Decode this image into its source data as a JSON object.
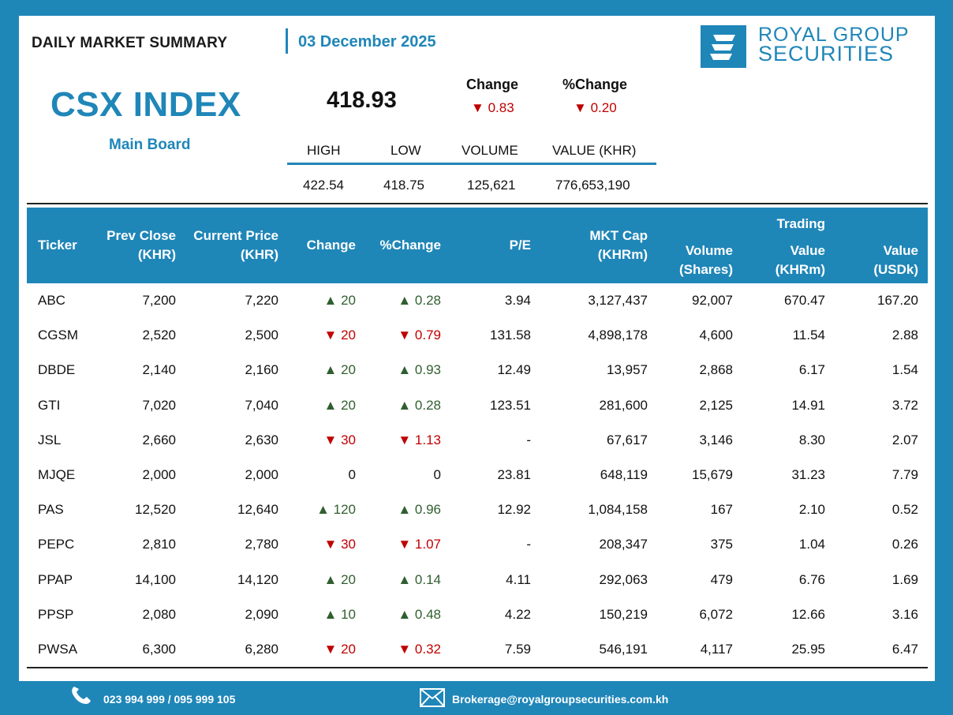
{
  "header": {
    "report_title": "DAILY MARKET SUMMARY",
    "date": "03 December 2025",
    "brand_line1": "ROYAL GROUP",
    "brand_line2": "SECURITIES"
  },
  "index": {
    "name": "CSX INDEX",
    "board": "Main Board",
    "value": "418.93",
    "change_label": "Change",
    "change_value": "0.83",
    "pct_change_label": "%Change",
    "pct_change_value": "0.20",
    "change_direction": "down"
  },
  "stats": {
    "labels": [
      "HIGH",
      "LOW",
      "VOLUME",
      "VALUE (KHR)"
    ],
    "values": [
      "422.54",
      "418.75",
      "125,621",
      "776,653,190"
    ]
  },
  "table": {
    "headers": {
      "ticker": "Ticker",
      "prev_close": [
        "Prev Close",
        "(KHR)"
      ],
      "current_price": [
        "Current Price",
        "(KHR)"
      ],
      "change": "Change",
      "pct_change": "%Change",
      "pe": "P/E",
      "mkt_cap": [
        "MKT Cap",
        "(KHRm)"
      ],
      "volume": [
        "Volume",
        "(Shares)"
      ],
      "trading": "Trading",
      "value_khrm": [
        "Value",
        "(KHRm)"
      ],
      "value_usdk": [
        "Value",
        "(USDk)"
      ]
    },
    "rows": [
      {
        "ticker": "ABC",
        "prev": "7,200",
        "cur": "7,220",
        "dir": "up",
        "chg": "20",
        "pct": "0.28",
        "pe": "3.94",
        "cap": "3,127,437",
        "vol": "92,007",
        "valk": "670.47",
        "valu": "167.20"
      },
      {
        "ticker": "CGSM",
        "prev": "2,520",
        "cur": "2,500",
        "dir": "down",
        "chg": "20",
        "pct": "0.79",
        "pe": "131.58",
        "cap": "4,898,178",
        "vol": "4,600",
        "valk": "11.54",
        "valu": "2.88"
      },
      {
        "ticker": "DBDE",
        "prev": "2,140",
        "cur": "2,160",
        "dir": "up",
        "chg": "20",
        "pct": "0.93",
        "pe": "12.49",
        "cap": "13,957",
        "vol": "2,868",
        "valk": "6.17",
        "valu": "1.54"
      },
      {
        "ticker": "GTI",
        "prev": "7,020",
        "cur": "7,040",
        "dir": "up",
        "chg": "20",
        "pct": "0.28",
        "pe": "123.51",
        "cap": "281,600",
        "vol": "2,125",
        "valk": "14.91",
        "valu": "3.72"
      },
      {
        "ticker": "JSL",
        "prev": "2,660",
        "cur": "2,630",
        "dir": "down",
        "chg": "30",
        "pct": "1.13",
        "pe": "-",
        "cap": "67,617",
        "vol": "3,146",
        "valk": "8.30",
        "valu": "2.07"
      },
      {
        "ticker": "MJQE",
        "prev": "2,000",
        "cur": "2,000",
        "dir": "none",
        "chg": "0",
        "pct": "0",
        "pe": "23.81",
        "cap": "648,119",
        "vol": "15,679",
        "valk": "31.23",
        "valu": "7.79"
      },
      {
        "ticker": "PAS",
        "prev": "12,520",
        "cur": "12,640",
        "dir": "up",
        "chg": "120",
        "pct": "0.96",
        "pe": "12.92",
        "cap": "1,084,158",
        "vol": "167",
        "valk": "2.10",
        "valu": "0.52"
      },
      {
        "ticker": "PEPC",
        "prev": "2,810",
        "cur": "2,780",
        "dir": "down",
        "chg": "30",
        "pct": "1.07",
        "pe": "-",
        "cap": "208,347",
        "vol": "375",
        "valk": "1.04",
        "valu": "0.26"
      },
      {
        "ticker": "PPAP",
        "prev": "14,100",
        "cur": "14,120",
        "dir": "up",
        "chg": "20",
        "pct": "0.14",
        "pe": "4.11",
        "cap": "292,063",
        "vol": "479",
        "valk": "6.76",
        "valu": "1.69"
      },
      {
        "ticker": "PPSP",
        "prev": "2,080",
        "cur": "2,090",
        "dir": "up",
        "chg": "10",
        "pct": "0.48",
        "pe": "4.22",
        "cap": "150,219",
        "vol": "6,072",
        "valk": "12.66",
        "valu": "3.16"
      },
      {
        "ticker": "PWSA",
        "prev": "6,300",
        "cur": "6,280",
        "dir": "down",
        "chg": "20",
        "pct": "0.32",
        "pe": "7.59",
        "cap": "546,191",
        "vol": "4,117",
        "valk": "25.95",
        "valu": "6.47"
      }
    ]
  },
  "footer": {
    "phone": "023 994 999 / 095 999 105",
    "email": "Brokerage@royalgroupsecurities.com.kh",
    "icons": [
      "phone-icon",
      "mail-icon"
    ]
  },
  "colors": {
    "brand": "#1f86b8",
    "up": "#2f5f2f",
    "down": "#c00000"
  }
}
